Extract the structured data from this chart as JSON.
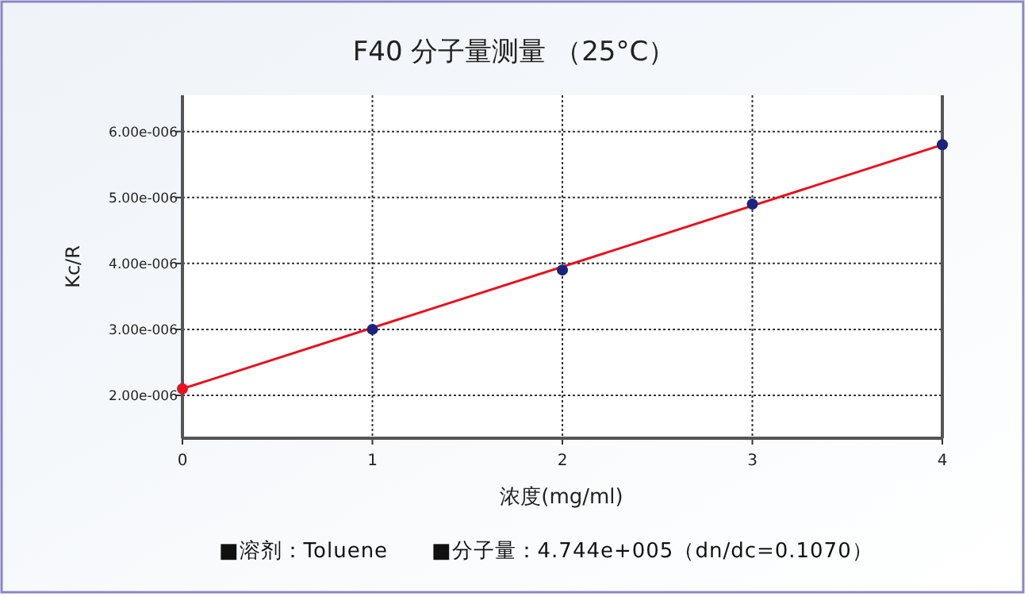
{
  "chart_data": {
    "type": "scatter",
    "title": "F40  分子量测量  （25°C）",
    "xlabel": "浓度(mg/ml)",
    "ylabel": "Kc/R",
    "annotations": [
      "■溶剂：Toluene",
      "■分子量：4.744e+005（dn/dc=0.1070）"
    ],
    "xlim": [
      0,
      4
    ],
    "ylim": [
      1.35e-06,
      6.55e-06
    ],
    "xticks": [
      0,
      1,
      2,
      3,
      4
    ],
    "yticks": [
      {
        "value": 2e-06,
        "label": "2.00e-006"
      },
      {
        "value": 3e-06,
        "label": "3.00e-006"
      },
      {
        "value": 4e-06,
        "label": "4.00e-006"
      },
      {
        "value": 5e-06,
        "label": "5.00e-006"
      },
      {
        "value": 6e-06,
        "label": "6.00e-006"
      }
    ],
    "grid": true,
    "marker": "circle",
    "series": [
      {
        "type": "line",
        "marker": "none",
        "color": "#e8101c",
        "x": [
          0,
          4
        ],
        "values": [
          2.1e-06,
          5.8e-06
        ]
      },
      {
        "color": "#e8101c",
        "x": [
          0
        ],
        "values": [
          2.1e-06
        ]
      },
      {
        "color": "#1a237e",
        "x": [
          1,
          2,
          3,
          4
        ],
        "values": [
          3e-06,
          3.9e-06,
          4.9e-06,
          5.8e-06
        ]
      }
    ]
  }
}
